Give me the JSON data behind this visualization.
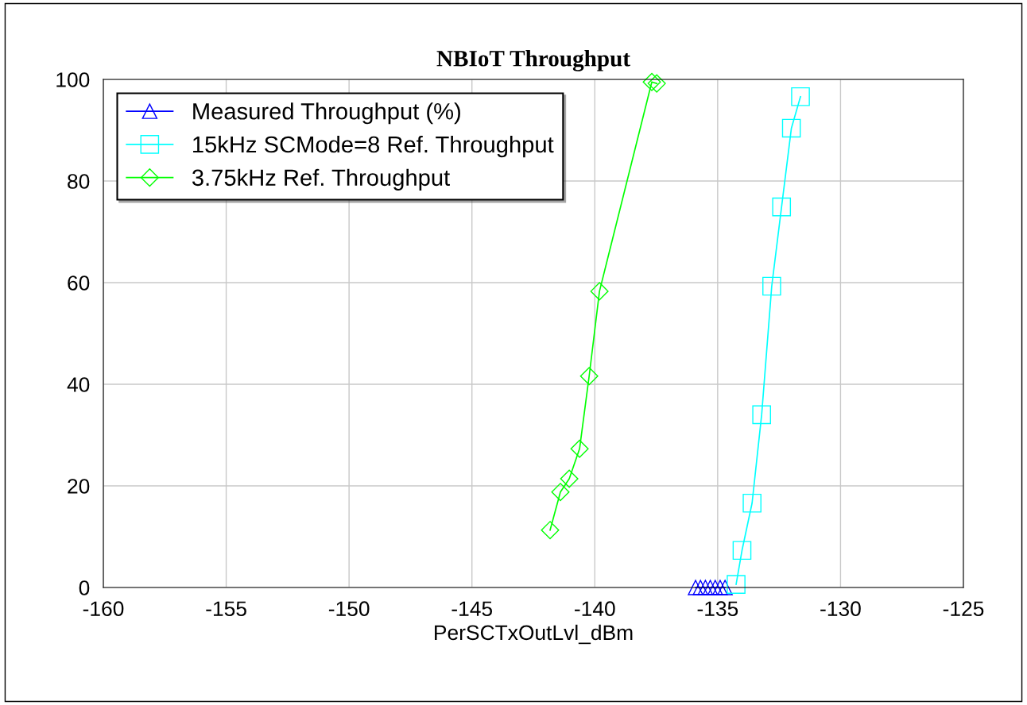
{
  "chart_data": {
    "type": "line",
    "title": "NBIoT Throughput",
    "xlabel": "PerSCTxOutLvl_dBm",
    "xlim": [
      -160,
      -125
    ],
    "xticks": [
      -160,
      -155,
      -150,
      -145,
      -140,
      -135,
      -130,
      -125
    ],
    "ylim": [
      0,
      100
    ],
    "yticks": [
      0,
      20,
      40,
      60,
      80,
      100
    ],
    "grid": true,
    "legend": "top left",
    "series": [
      {
        "name": "Measured Throughput (%)",
        "color": "#0000ff",
        "marker": "triangle",
        "x": [
          -135.9,
          -135.7,
          -135.5,
          -135.3,
          -135.1,
          -134.9,
          -134.7
        ],
        "values": [
          0,
          0,
          0,
          0,
          0,
          0,
          0
        ]
      },
      {
        "name": "15kHz SCMode=8 Ref. Throughput",
        "color": "#00ffff",
        "marker": "square",
        "x": [
          -134.25,
          -134.01,
          -133.6,
          -133.21,
          -132.8,
          -132.4,
          -132.0,
          -131.63
        ],
        "values": [
          0.6,
          7.3,
          16.6,
          34.0,
          59.3,
          74.9,
          90.4,
          96.6
        ]
      },
      {
        "name": "3.75kHz Ref. Throughput",
        "color": "#00ff00",
        "marker": "diamond",
        "x": [
          -141.82,
          -141.4,
          -141.04,
          -140.62,
          -140.23,
          -139.81,
          -137.68,
          -137.48
        ],
        "values": [
          11.3,
          18.8,
          21.4,
          27.3,
          41.6,
          58.3,
          99.5,
          99.2
        ]
      }
    ]
  }
}
